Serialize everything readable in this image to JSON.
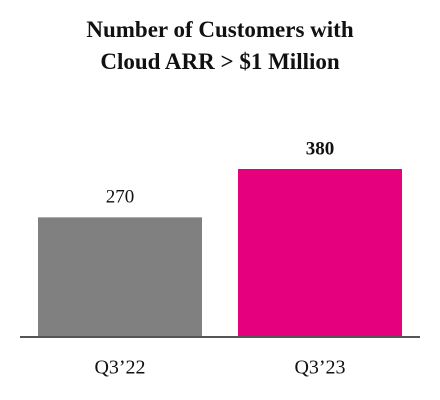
{
  "chart_data": {
    "type": "bar",
    "title": "Number of Customers with Cloud ARR > $1 Million",
    "categories": [
      "Q3’22",
      "Q3’23"
    ],
    "values": [
      270,
      380
    ],
    "colors": [
      "#808080",
      "#e5007d"
    ],
    "value_label_bold": [
      false,
      true
    ]
  }
}
